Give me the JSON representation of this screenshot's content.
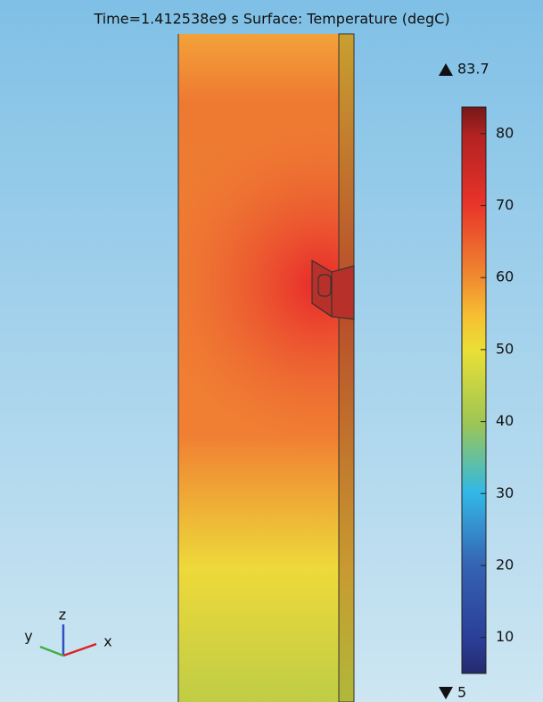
{
  "title": "Time=1.412538e9 s   Surface: Temperature (degC)",
  "colorbar": {
    "min": 5,
    "max": 83.7,
    "ticks": [
      10,
      20,
      30,
      40,
      50,
      60,
      70,
      80
    ]
  },
  "axes": {
    "x": "x",
    "y": "y",
    "z": "z"
  }
}
